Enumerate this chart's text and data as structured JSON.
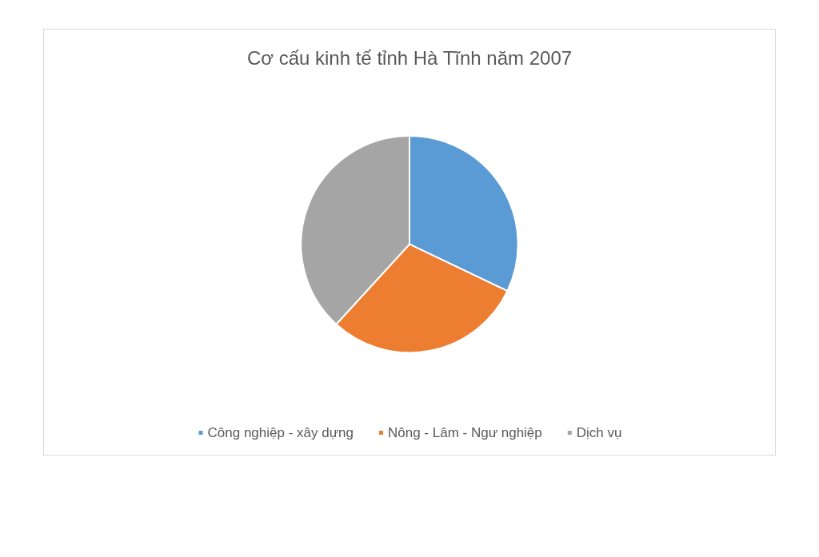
{
  "chart_data": {
    "type": "pie",
    "title": "Cơ cấu kinh tế tỉnh Hà Tĩnh năm 2007",
    "categories": [
      "Công nghiệp - xây dựng",
      "Nông - Lâm - Ngư nghiệp",
      "Dịch vụ"
    ],
    "values": [
      32.1,
      29.7,
      38.2
    ],
    "colors": [
      "#5b9bd5",
      "#ed7d31",
      "#a5a5a5"
    ],
    "legend": "bottom"
  }
}
